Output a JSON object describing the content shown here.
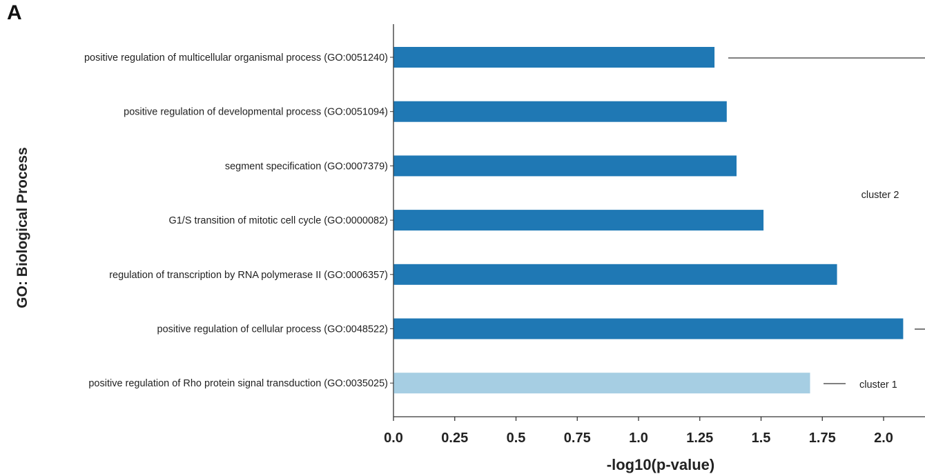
{
  "panel_label": "A",
  "chart_data": {
    "type": "bar",
    "orientation": "horizontal",
    "ylabel": "GO: Biological Process",
    "xlabel": "-log10(p-value)",
    "xlim": [
      0,
      2.2
    ],
    "xticks": [
      "0.0",
      "0.25",
      "0.5",
      "0.75",
      "1.0",
      "1.25",
      "1.5",
      "1.75",
      "2.0"
    ],
    "colors": {
      "cluster 1": "#a6cee3",
      "cluster 2": "#1f78b4"
    },
    "bars": [
      {
        "label": "positive regulation of multicellular organismal process (GO:0051240)",
        "value": 1.31,
        "cluster": "cluster 2"
      },
      {
        "label": "positive regulation of developmental process (GO:0051094)",
        "value": 1.36,
        "cluster": "cluster 2"
      },
      {
        "label": "segment specification (GO:0007379)",
        "value": 1.4,
        "cluster": "cluster 2"
      },
      {
        "label": "G1/S transition of mitotic cell cycle (GO:0000082)",
        "value": 1.51,
        "cluster": "cluster 2"
      },
      {
        "label": "regulation of transcription by RNA polymerase II (GO:0006357)",
        "value": 1.81,
        "cluster": "cluster 2"
      },
      {
        "label": "positive regulation of cellular process (GO:0048522)",
        "value": 2.08,
        "cluster": "cluster 2"
      },
      {
        "label": "positive regulation of Rho protein signal transduction (GO:0035025)",
        "value": 1.7,
        "cluster": "cluster 1"
      }
    ],
    "cluster_labels": [
      "cluster 2",
      "cluster 1"
    ]
  }
}
